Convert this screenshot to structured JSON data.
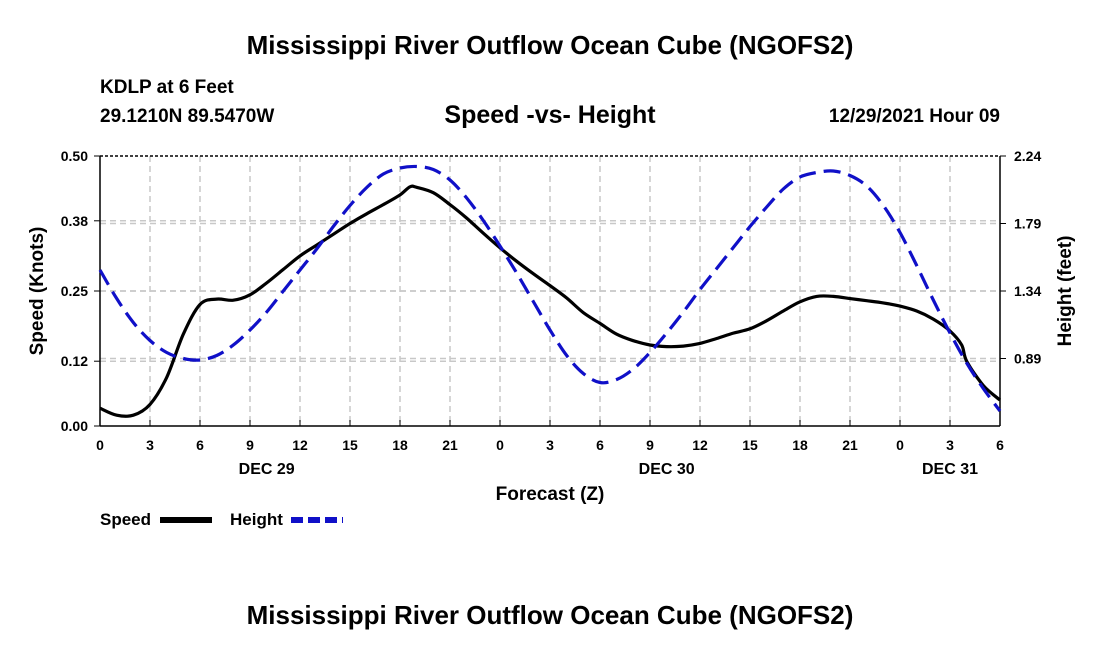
{
  "header": {
    "main_title": "Mississippi River Outflow Ocean Cube (NGOFS2)",
    "station": "KDLP at 6 Feet",
    "coords": "29.1210N  89.5470W",
    "subtitle": "Speed -vs- Height",
    "datetime": "12/29/2021 Hour 09",
    "footer_title": "Mississippi River Outflow Ocean Cube (NGOFS2)"
  },
  "legend": {
    "speed_label": "Speed",
    "height_label": "Height"
  },
  "colors": {
    "speed": "#000000",
    "height": "#1010c8",
    "grid": "#c8c8c8"
  },
  "chart_data": {
    "type": "line",
    "title": "Speed -vs- Height",
    "xlabel": "Forecast (Z)",
    "ylabel": "Speed (Knots)",
    "y2label": "Height (feet)",
    "x_range_hours": [
      0,
      54
    ],
    "x_tick_labels": [
      "0",
      "3",
      "6",
      "9",
      "12",
      "15",
      "18",
      "21",
      "0",
      "3",
      "6",
      "9",
      "12",
      "15",
      "18",
      "21",
      "0",
      "3",
      "6"
    ],
    "date_labels": [
      {
        "hour": 10,
        "label": "DEC 29"
      },
      {
        "hour": 34,
        "label": "DEC 30"
      },
      {
        "hour": 51,
        "label": "DEC 31"
      }
    ],
    "ylim": [
      0,
      0.5
    ],
    "y_ticks": [
      "0.00",
      "0.12",
      "0.25",
      "0.38",
      "0.50"
    ],
    "y2lim": [
      0.44,
      2.24
    ],
    "y2_ticks": [
      "0.89",
      "1.34",
      "1.79",
      "2.24"
    ],
    "series": [
      {
        "name": "Speed",
        "axis": "left",
        "x": [
          0,
          1,
          2,
          3,
          4,
          5,
          6,
          7,
          8,
          9,
          10,
          11,
          12,
          13,
          14,
          15,
          16,
          17,
          18,
          18.6,
          19,
          20,
          21,
          22,
          23,
          24,
          25,
          26,
          27,
          28,
          29,
          30,
          31,
          32,
          33,
          34,
          35,
          36,
          37,
          38,
          39,
          40,
          41,
          42,
          43,
          44,
          45,
          46,
          47,
          48,
          49,
          50,
          51,
          51.7,
          52,
          53,
          54
        ],
        "values": [
          0.033,
          0.02,
          0.02,
          0.04,
          0.09,
          0.17,
          0.225,
          0.235,
          0.233,
          0.243,
          0.265,
          0.29,
          0.315,
          0.335,
          0.355,
          0.375,
          0.393,
          0.41,
          0.428,
          0.443,
          0.442,
          0.432,
          0.41,
          0.385,
          0.357,
          0.33,
          0.305,
          0.282,
          0.26,
          0.237,
          0.21,
          0.19,
          0.17,
          0.158,
          0.15,
          0.147,
          0.148,
          0.153,
          0.162,
          0.172,
          0.18,
          0.195,
          0.213,
          0.23,
          0.24,
          0.24,
          0.236,
          0.232,
          0.228,
          0.222,
          0.213,
          0.198,
          0.176,
          0.15,
          0.12,
          0.075,
          0.048
        ]
      },
      {
        "name": "Height",
        "axis": "right",
        "x": [
          0,
          1,
          2,
          3,
          4,
          5,
          6,
          7,
          8,
          9,
          10,
          11,
          12,
          13,
          14,
          15,
          16,
          17,
          18,
          19,
          20,
          21,
          22,
          23,
          24,
          25,
          26,
          27,
          28,
          29,
          30,
          31,
          32,
          33,
          34,
          35,
          36,
          37,
          38,
          39,
          40,
          41,
          42,
          43,
          44,
          45,
          46,
          47,
          48,
          49,
          50,
          51,
          52,
          53,
          54
        ],
        "values": [
          1.48,
          1.29,
          1.13,
          1.01,
          0.93,
          0.89,
          0.88,
          0.91,
          0.98,
          1.08,
          1.2,
          1.34,
          1.48,
          1.62,
          1.77,
          1.91,
          2.03,
          2.12,
          2.16,
          2.17,
          2.15,
          2.08,
          1.96,
          1.81,
          1.64,
          1.46,
          1.27,
          1.08,
          0.91,
          0.79,
          0.73,
          0.75,
          0.82,
          0.93,
          1.06,
          1.2,
          1.35,
          1.49,
          1.63,
          1.77,
          1.9,
          2.02,
          2.1,
          2.13,
          2.14,
          2.11,
          2.04,
          1.91,
          1.73,
          1.51,
          1.28,
          1.06,
          0.86,
          0.69,
          0.54
        ]
      }
    ]
  }
}
